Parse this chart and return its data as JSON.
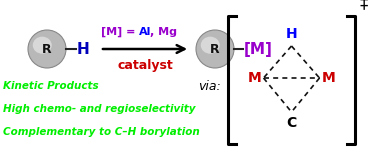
{
  "bg_color": "#ffffff",
  "M_eq_color_bracket": "#9900cc",
  "M_eq_color_Al": "#0000ff",
  "catalyst_color": "#cc0000",
  "H_text_color": "#0000bb",
  "M_text_color": "#9900cc",
  "arrow_color": "#000000",
  "green_text_color": "#00ee00",
  "diamond_H_color": "#0000ff",
  "diamond_M_color": "#cc0000",
  "diamond_C_color": "#000000",
  "bullet1": "Kinetic Products",
  "bullet2": "High chemo- and regioselectivity",
  "bullet3": "Complementary to C–H borylation",
  "fig_width": 3.78,
  "fig_height": 1.54,
  "dpi": 100
}
